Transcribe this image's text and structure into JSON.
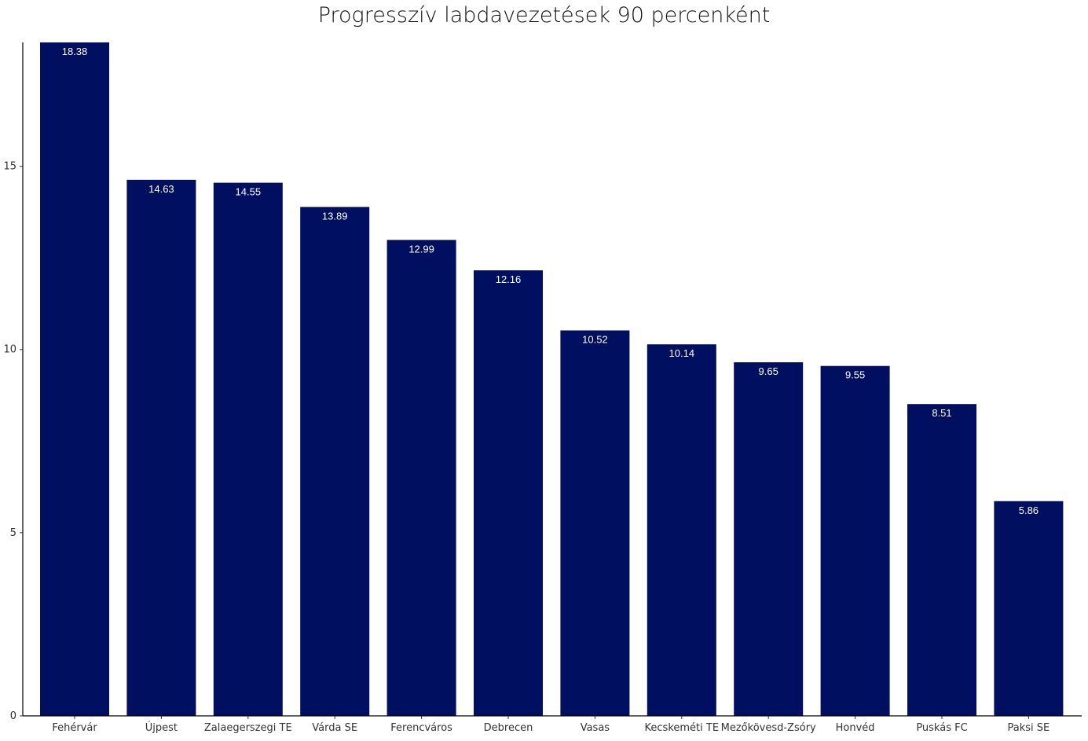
{
  "chart_data": {
    "type": "bar",
    "title": "Progresszív labdavezetések 90 percenként",
    "xlabel": "",
    "ylabel": "",
    "categories": [
      "Fehérvár",
      "Újpest",
      "Zalaegerszegi TE",
      "Várda SE",
      "Ferencváros",
      "Debrecen",
      "Vasas",
      "Kecskeméti TE",
      "Mezőkövesd-Zsóry",
      "Honvéd",
      "Puskás FC",
      "Paksi SE"
    ],
    "values": [
      18.38,
      14.63,
      14.55,
      13.89,
      12.99,
      12.16,
      10.52,
      10.14,
      9.65,
      9.55,
      8.51,
      5.86
    ],
    "data_labels": [
      "18.38",
      "14.63",
      "14.55",
      "13.89",
      "12.99",
      "12.16",
      "10.52",
      "10.14",
      "9.65",
      "9.55",
      "8.51",
      "5.86"
    ],
    "yticks": [
      0,
      5,
      10,
      15
    ],
    "ylim": [
      0,
      18.38
    ],
    "grid": false,
    "legend": "none",
    "bar_color": "#000f5f",
    "label_color": "#ffffff"
  }
}
